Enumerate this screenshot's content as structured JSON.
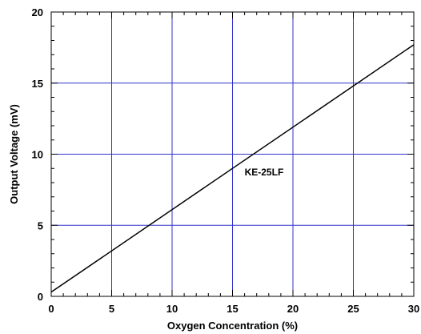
{
  "chart_data": {
    "type": "line",
    "title": "",
    "xlabel": "Oxygen Concentration (%)",
    "ylabel": "Output Voltage (mV)",
    "xlim": [
      0,
      30
    ],
    "ylim": [
      0,
      20
    ],
    "x_ticks": [
      "0",
      "5",
      "10",
      "15",
      "20",
      "25",
      "30"
    ],
    "y_ticks": [
      "0",
      "5",
      "10",
      "15",
      "20"
    ],
    "grid": true,
    "legend": "none",
    "colors": {
      "grid": "#3333cc",
      "line": "#000000",
      "axes": "#000000"
    },
    "series": [
      {
        "name": "KE-25LF",
        "x": [
          0,
          30
        ],
        "y": [
          0.3,
          17.7
        ]
      }
    ],
    "annotations": [
      {
        "text": "KE-25LF",
        "x": 16,
        "y": 8.5
      }
    ]
  }
}
